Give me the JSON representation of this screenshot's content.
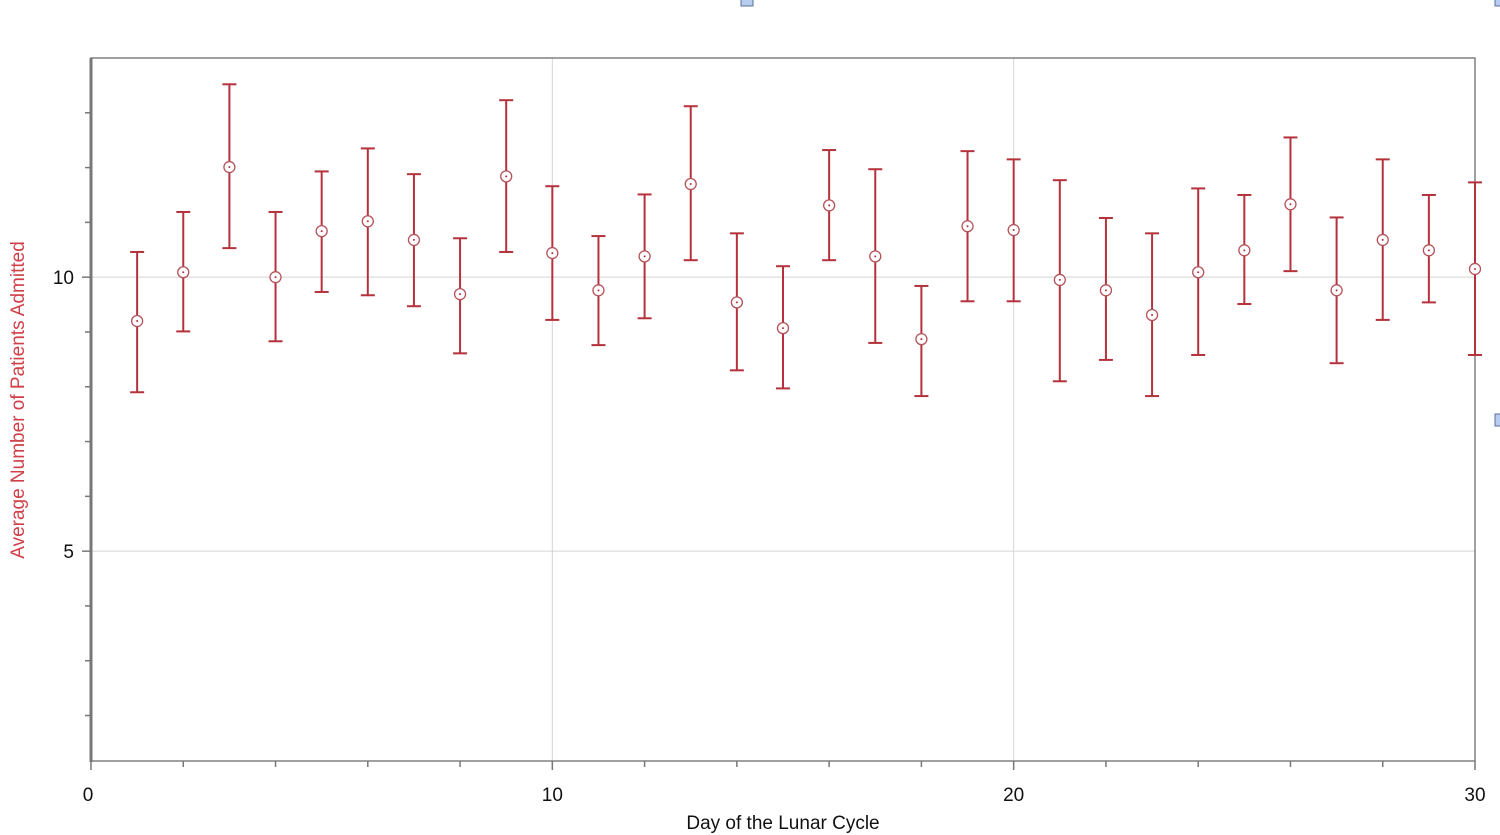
{
  "chart_data": {
    "type": "scatter",
    "subtype": "mean-with-error-bars",
    "xlabel": "Day of the Lunar Cycle",
    "ylabel": "Average Number of Patients Admitted",
    "xlim": [
      0,
      30
    ],
    "ylim": [
      1.17,
      14
    ],
    "x_ticks": [
      0,
      10,
      20,
      30
    ],
    "y_ticks": [
      5,
      10
    ],
    "grid": true,
    "colors": {
      "series": "#b5323c",
      "ylabel": "#d0404a",
      "axis": "#777777",
      "grid": "#d4d4d4"
    },
    "x": [
      1,
      2,
      3,
      4,
      5,
      6,
      7,
      8,
      9,
      10,
      11,
      12,
      13,
      14,
      15,
      16,
      17,
      18,
      19,
      20,
      21,
      22,
      23,
      24,
      25,
      26,
      27,
      28,
      29,
      30
    ],
    "mean": [
      9.2,
      10.09,
      12.01,
      10.0,
      10.84,
      11.02,
      10.68,
      9.69,
      11.84,
      10.44,
      9.76,
      10.38,
      11.7,
      9.54,
      9.07,
      11.31,
      10.38,
      8.87,
      10.93,
      10.86,
      9.95,
      9.76,
      9.31,
      10.09,
      10.49,
      11.33,
      9.76,
      10.68,
      10.49,
      10.15
    ],
    "upper": [
      10.46,
      11.19,
      13.52,
      11.19,
      11.93,
      12.35,
      11.88,
      10.71,
      13.23,
      11.66,
      10.75,
      11.51,
      13.12,
      10.8,
      10.2,
      12.32,
      11.97,
      9.84,
      12.3,
      12.15,
      11.77,
      11.08,
      10.8,
      11.62,
      11.5,
      12.55,
      11.09,
      12.15,
      11.5,
      11.73
    ],
    "lower": [
      7.9,
      9.01,
      10.53,
      8.83,
      9.73,
      9.67,
      9.47,
      8.61,
      10.46,
      9.22,
      8.76,
      9.25,
      10.31,
      8.3,
      7.97,
      10.31,
      8.8,
      7.83,
      9.56,
      9.56,
      8.1,
      8.49,
      7.83,
      8.58,
      9.51,
      10.11,
      8.43,
      9.22,
      9.54,
      8.58
    ]
  }
}
